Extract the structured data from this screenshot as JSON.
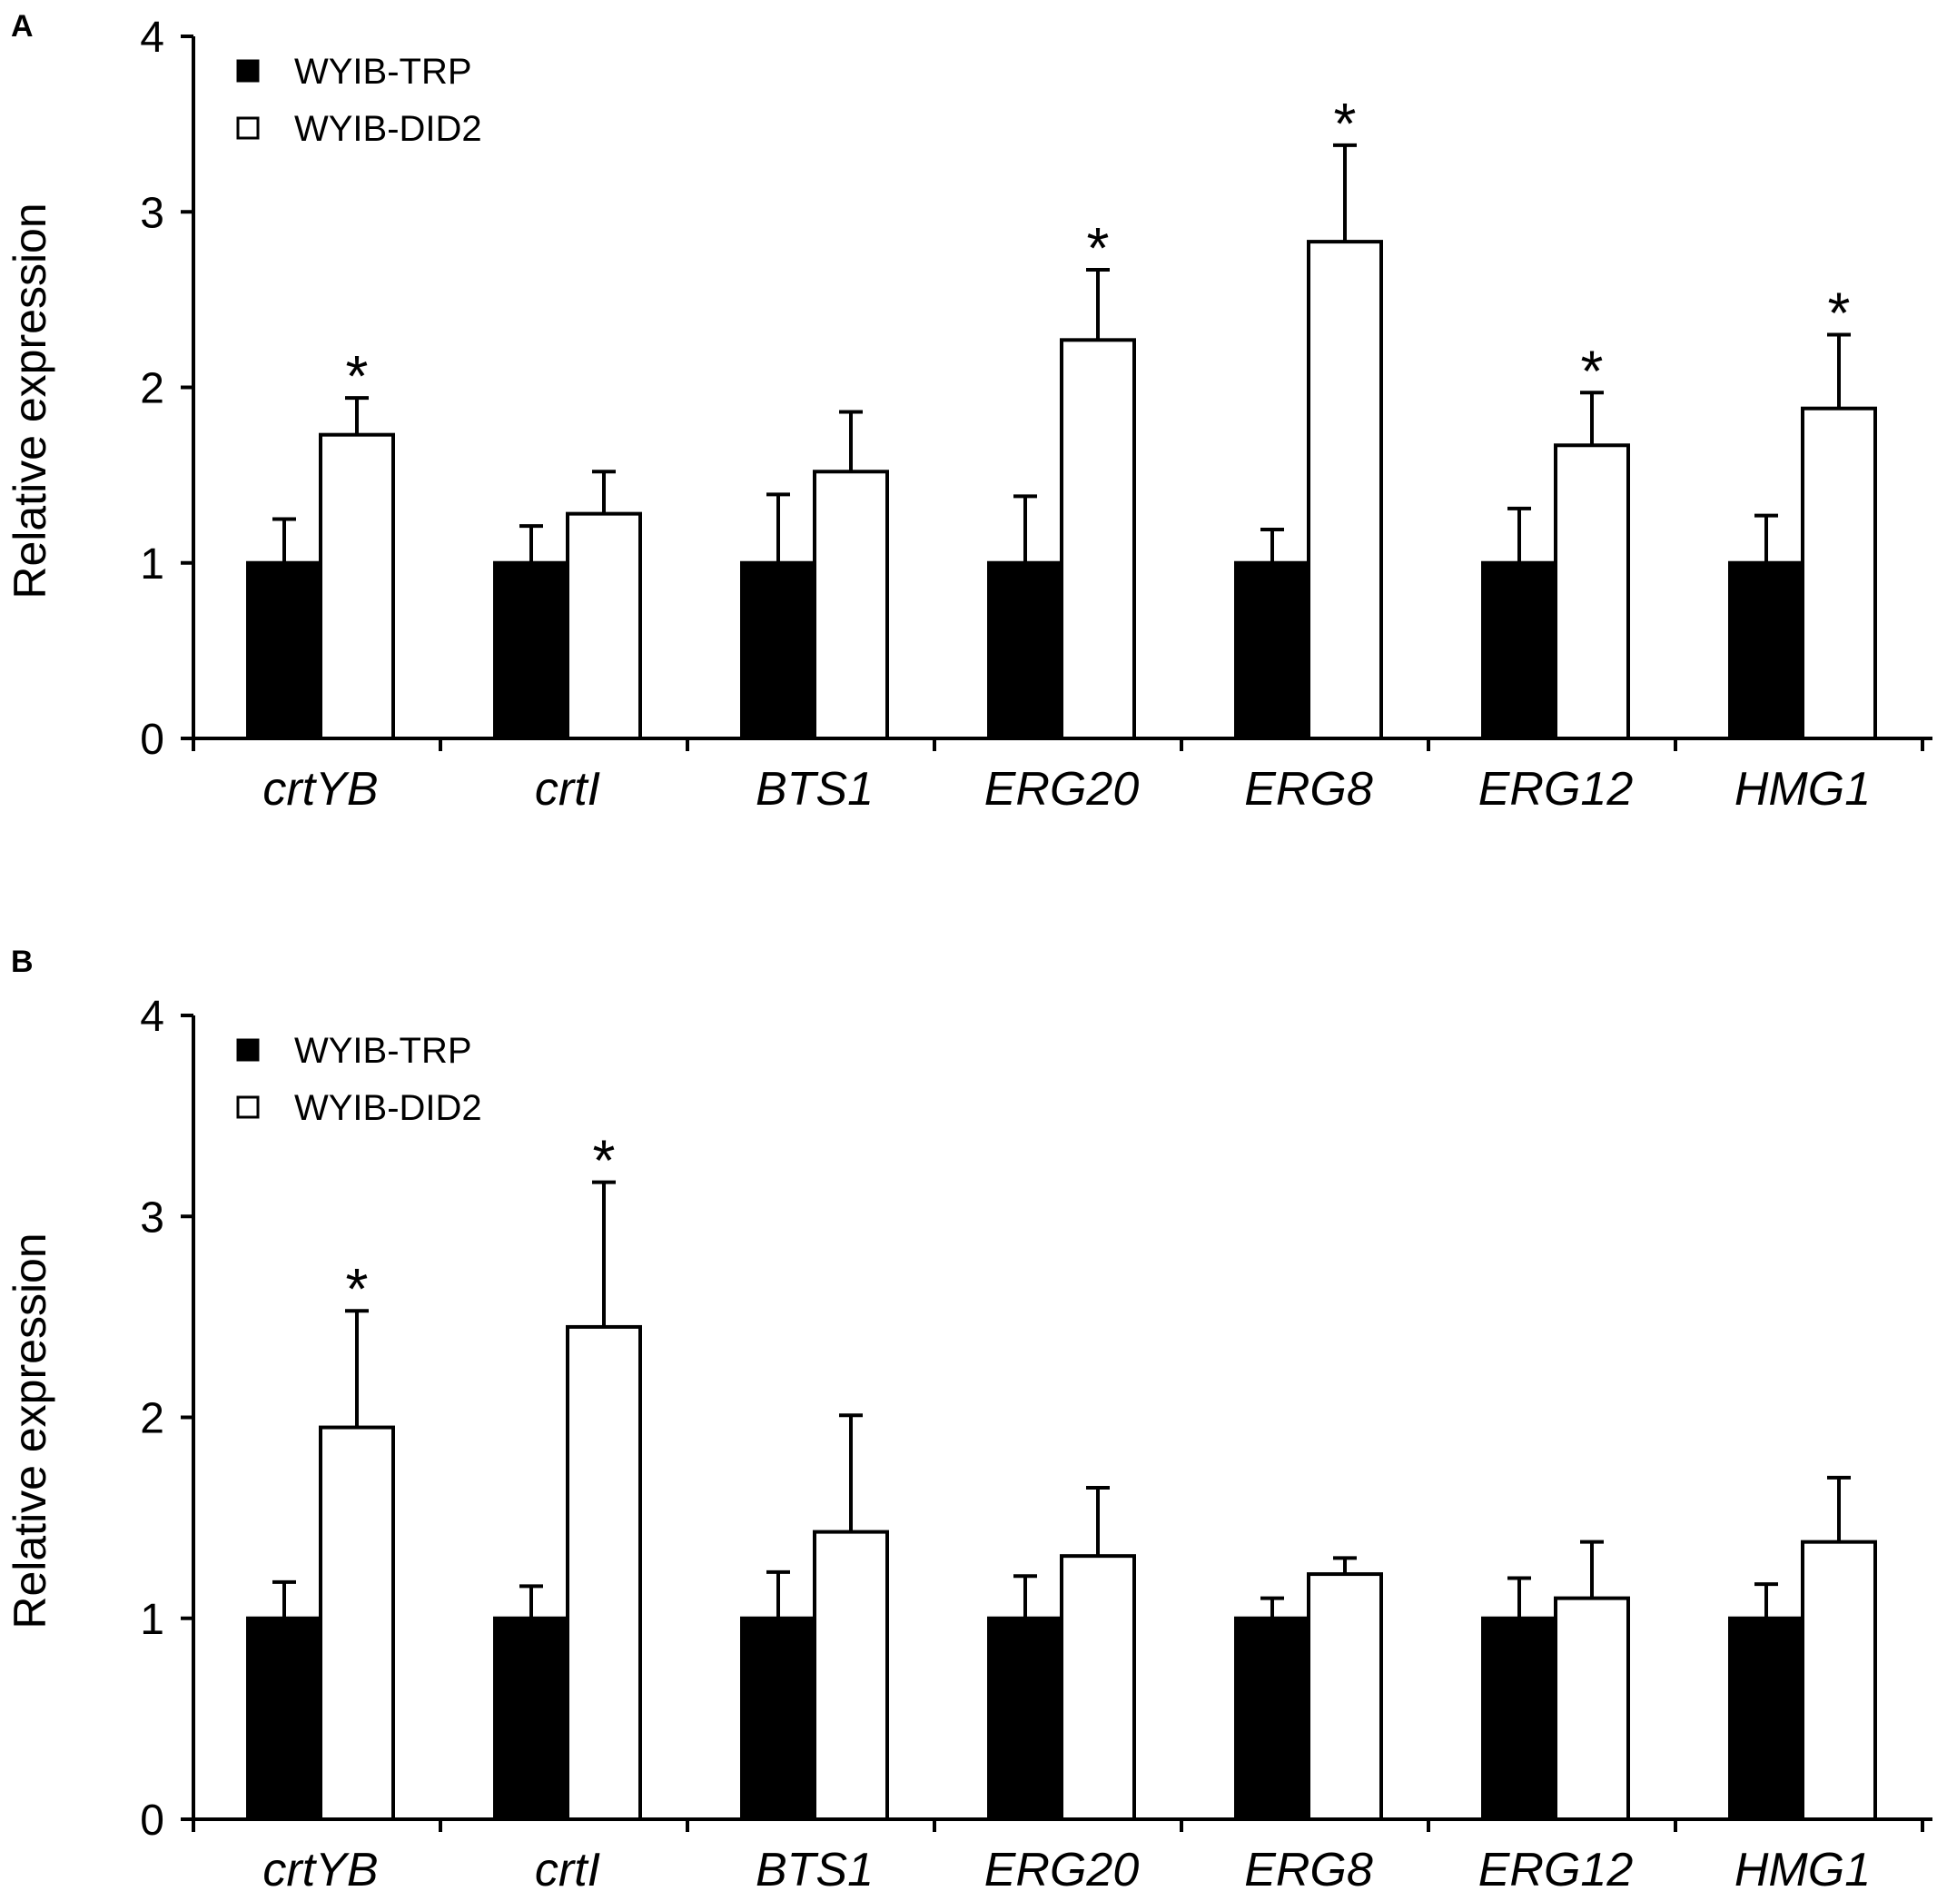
{
  "chart_data": [
    {
      "panel": "A",
      "type": "bar",
      "title": "",
      "xlabel": "",
      "ylabel": "Relative expression",
      "ylim": [
        0,
        4
      ],
      "yticks": [
        "0",
        "1",
        "2",
        "3",
        "4"
      ],
      "grid": false,
      "legend_position": "top-left",
      "categories": [
        "crtYB",
        "crtI",
        "BTS1",
        "ERG20",
        "ERG8",
        "ERG12",
        "HMG1"
      ],
      "series": [
        {
          "name": "WYIB-TRP",
          "fill": "#000000",
          "values": [
            1,
            1,
            1,
            1,
            1,
            1,
            1
          ],
          "errors": [
            0.25,
            0.21,
            0.39,
            0.38,
            0.19,
            0.31,
            0.27
          ]
        },
        {
          "name": "WYIB-DID2",
          "fill": "#ffffff",
          "values": [
            1.73,
            1.28,
            1.52,
            2.27,
            2.83,
            1.67,
            1.88
          ],
          "errors": [
            0.21,
            0.24,
            0.34,
            0.4,
            0.55,
            0.3,
            0.42
          ],
          "significance": [
            "*",
            "",
            "",
            "*",
            "*",
            "*",
            "*"
          ]
        }
      ]
    },
    {
      "panel": "B",
      "type": "bar",
      "title": "",
      "xlabel": "",
      "ylabel": "Relative expression",
      "ylim": [
        0,
        4
      ],
      "yticks": [
        "0",
        "1",
        "2",
        "3",
        "4"
      ],
      "grid": false,
      "legend_position": "top-left",
      "categories": [
        "crtYB",
        "crtI",
        "BTS1",
        "ERG20",
        "ERG8",
        "ERG12",
        "HMG1"
      ],
      "series": [
        {
          "name": "WYIB-TRP",
          "fill": "#000000",
          "values": [
            1,
            1,
            1,
            1,
            1,
            1,
            1
          ],
          "errors": [
            0.18,
            0.16,
            0.23,
            0.21,
            0.1,
            0.2,
            0.17
          ]
        },
        {
          "name": "WYIB-DID2",
          "fill": "#ffffff",
          "values": [
            1.95,
            2.45,
            1.43,
            1.31,
            1.22,
            1.1,
            1.38
          ],
          "errors": [
            0.58,
            0.72,
            0.58,
            0.34,
            0.08,
            0.28,
            0.32
          ],
          "significance": [
            "*",
            "*",
            "",
            "",
            "",
            "",
            ""
          ]
        }
      ]
    }
  ]
}
